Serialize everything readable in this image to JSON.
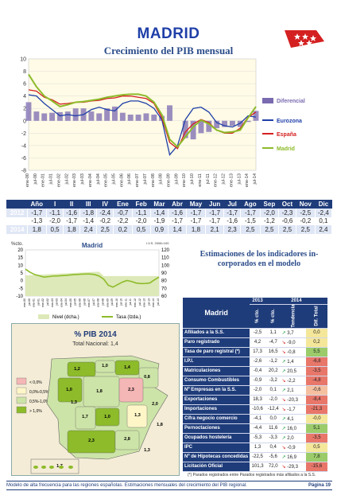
{
  "header": {
    "title": "MADRID",
    "subtitle": "Crecimiento del PIB mensual"
  },
  "chart_main": {
    "type": "line",
    "y_ticks": [
      "10",
      "8",
      "6",
      "4",
      "2",
      "0",
      "-2",
      "-4",
      "-6",
      "-8"
    ],
    "x_ticks": [
      "ene-00",
      "jul-00",
      "ene-01",
      "jul-01",
      "ene-02",
      "jul-02",
      "ene-03",
      "jul-03",
      "ene-04",
      "jul-04",
      "ene-05",
      "jul-05",
      "ene-06",
      "jul-06",
      "ene-07",
      "jul-07",
      "ene-08",
      "jul-08",
      "ene-09",
      "jul-09",
      "ene-10",
      "jul-10",
      "ene-11",
      "jul-11",
      "ene-12",
      "jul-12",
      "ene-13",
      "jul-13",
      "ene-14",
      "jul-14"
    ],
    "legend": [
      {
        "name": "Diferencial",
        "color": "#7a6ab0"
      },
      {
        "name": "Eurozona",
        "color": "#1f3fa8"
      },
      {
        "name": "España",
        "color": "#d42020"
      },
      {
        "name": "Madrid",
        "color": "#8dbb2a"
      }
    ]
  },
  "chart_data": {
    "type": "line",
    "x": [
      "2000-01",
      "2000-07",
      "2001-01",
      "2001-07",
      "2002-01",
      "2002-07",
      "2003-01",
      "2003-07",
      "2004-01",
      "2004-07",
      "2005-01",
      "2005-07",
      "2006-01",
      "2006-07",
      "2007-01",
      "2007-07",
      "2008-01",
      "2008-07",
      "2009-01",
      "2009-07",
      "2010-01",
      "2010-07",
      "2011-01",
      "2011-07",
      "2012-01",
      "2012-07",
      "2013-01",
      "2013-07",
      "2014-01",
      "2014-07"
    ],
    "ylim": [
      -8,
      10
    ],
    "series": [
      {
        "name": "Madrid",
        "values": [
          7.5,
          5.5,
          4.0,
          3.2,
          2.3,
          2.6,
          3.0,
          3.1,
          3.3,
          3.5,
          3.8,
          4.0,
          4.2,
          4.3,
          4.3,
          4.0,
          3.0,
          1.0,
          -3.0,
          -4.2,
          -2.6,
          -1.0,
          0.1,
          -0.5,
          -1.5,
          -1.9,
          -1.8,
          -1.5,
          0.5,
          2.3
        ]
      },
      {
        "name": "España",
        "values": [
          5.0,
          4.8,
          3.8,
          3.4,
          2.7,
          2.8,
          3.0,
          3.0,
          3.2,
          3.3,
          3.6,
          3.7,
          4.0,
          4.0,
          3.8,
          3.6,
          2.8,
          0.5,
          -3.5,
          -4.5,
          -1.8,
          -0.5,
          0.2,
          -0.3,
          -1.5,
          -2.0,
          -2.0,
          -1.2,
          0.6,
          1.4
        ]
      },
      {
        "name": "Eurozona",
        "values": [
          4.2,
          4.0,
          2.8,
          1.8,
          0.8,
          1.0,
          0.8,
          1.0,
          1.8,
          2.2,
          1.8,
          1.6,
          2.8,
          3.2,
          3.2,
          2.8,
          2.0,
          0.2,
          -5.5,
          -4.0,
          0.2,
          2.0,
          2.2,
          1.4,
          -0.3,
          -0.8,
          -1.0,
          -0.4,
          0.8,
          0.6
        ]
      },
      {
        "name": "Diferencial",
        "values": [
          3.0,
          1.5,
          1.2,
          1.3,
          1.4,
          1.5,
          2.0,
          2.0,
          1.5,
          1.2,
          2.0,
          2.3,
          1.3,
          1.0,
          1.0,
          1.2,
          1.0,
          0.8,
          2.5,
          0.0,
          -2.8,
          -3.0,
          -2.0,
          -1.8,
          -1.2,
          -1.0,
          -0.8,
          -1.0,
          -0.2,
          1.6
        ]
      }
    ]
  },
  "table1": {
    "headers": [
      "",
      "Año",
      "I",
      "II",
      "III",
      "IV",
      "Ene",
      "Feb",
      "Mar",
      "Abr",
      "May",
      "Jun",
      "Jul",
      "Ago",
      "Sep",
      "Oct",
      "Nov",
      "Dic"
    ],
    "rows": [
      {
        "year": "2012",
        "vals": [
          "-1,7",
          "-1,1",
          "-1,6",
          "-1,8",
          "-2,4",
          "-0,7",
          "-1,1",
          "-1,4",
          "-1,6",
          "-1,7",
          "-1,7",
          "-1,7",
          "-1,7",
          "-2,0",
          "-2,3",
          "-2,5",
          "-2,4"
        ]
      },
      {
        "year": "2013",
        "vals": [
          "-1,3",
          "-2,0",
          "-1,7",
          "-1,4",
          "-0,2",
          "-2,2",
          "-2,0",
          "-1,9",
          "-1,7",
          "-1,7",
          "-1,7",
          "-1,6",
          "-1,5",
          "-1,2",
          "-0,6",
          "-0,2",
          "0,1"
        ]
      },
      {
        "year": "2014",
        "vals": [
          "1,8",
          "0,5",
          "1,8",
          "2,4",
          "2,5",
          "0,2",
          "0,5",
          "0,9",
          "1,4",
          "1,8",
          "2,1",
          "2,3",
          "2,5",
          "2,5",
          "2,5",
          "2,5",
          "2,4"
        ]
      }
    ]
  },
  "chart_small": {
    "title": "Madrid",
    "ylabel_left": "%cto.",
    "ylabel_right": "I.V.S. 2008=100",
    "left_ticks": [
      "20",
      "15",
      "10",
      "5",
      "0",
      "-5",
      "-10"
    ],
    "right_ticks": [
      "120",
      "110",
      "100",
      "90",
      "80",
      "70",
      "60"
    ],
    "legend": [
      "Nivel (dcha.)",
      "Tasa (Izda.)"
    ]
  },
  "estimaciones": {
    "line1": "Estimaciones de los indicadores in-",
    "line2": "corporados en el modelo"
  },
  "table2": {
    "region": "Madrid",
    "year_a": "2013",
    "year_b": "2014",
    "col_a": "% cto.",
    "col_b": "% cto.",
    "col_c": "Tendencia",
    "col_d": "Dif. Total",
    "rows": [
      {
        "label": "Afiliados a la S.S.",
        "a": "-2,5",
        "b": "1,1",
        "trend": "3,7",
        "dir": "up",
        "diff": "0,0"
      },
      {
        "label": "Paro registrado",
        "a": "4,2",
        "b": "-4,7",
        "trend": "-9,0",
        "dir": "dn",
        "diff": "0,2"
      },
      {
        "label": "Tasa de paro registral (*)",
        "a": "17,3",
        "b": "16,5",
        "trend": "-0,8",
        "dir": "dn",
        "diff": "5,5"
      },
      {
        "label": "I.P.I.",
        "a": "-2,6",
        "b": "-1,2",
        "trend": "1,4",
        "dir": "up",
        "diff": "-6,8"
      },
      {
        "label": "Matriculaciones",
        "a": "-0,4",
        "b": "20,2",
        "trend": "20,5",
        "dir": "up",
        "diff": "-3,5"
      },
      {
        "label": "Consumo Combustibles",
        "a": "-0,9",
        "b": "-3,2",
        "trend": "-2,2",
        "dir": "dn",
        "diff": "-4,8"
      },
      {
        "label": "Nº Empresas en la S.S.",
        "a": "-2,0",
        "b": "0,1",
        "trend": "2,1",
        "dir": "up",
        "diff": "-0,6"
      },
      {
        "label": "Exportaciones",
        "a": "18,3",
        "b": "-2,0",
        "trend": "-20,3",
        "dir": "dn",
        "diff": "-8,4"
      },
      {
        "label": "Importaciones",
        "a": "-10,6",
        "b": "-12,4",
        "trend": "-1,7",
        "dir": "dn",
        "diff": "-21,3"
      },
      {
        "label": "Cifra negocio comercio",
        "a": "-4,1",
        "b": "0,0",
        "trend": "4,1",
        "dir": "up",
        "diff": "-0,0"
      },
      {
        "label": "Pernoctaciones",
        "a": "-4,4",
        "b": "11,6",
        "trend": "16,0",
        "dir": "up",
        "diff": "5,1"
      },
      {
        "label": "Ocupados hostelería",
        "a": "-5,3",
        "b": "-3,3",
        "trend": "2,0",
        "dir": "up",
        "diff": "-3,5"
      },
      {
        "label": "IPC",
        "a": "1,3",
        "b": "0,4",
        "trend": "-0,9",
        "dir": "dn",
        "diff": "0,5"
      },
      {
        "label": "Nº de Hipotecas concedidas",
        "a": "-22,5",
        "b": "-5,6",
        "trend": "16,9",
        "dir": "up",
        "diff": "7,8"
      },
      {
        "label": "Licitación Oficial",
        "a": "101,3",
        "b": "72,0",
        "trend": "-29,3",
        "dir": "dn",
        "diff": "-15,6"
      }
    ],
    "note": "(*) Parados registrados entre Parados registrados más afiliados a la S.S."
  },
  "map": {
    "title": "% PIB 2014",
    "subtitle": "Total Nacional: 1,4",
    "legend": [
      "< 0,0%",
      "0,0%-0,5%",
      "0,5%-1,0%",
      "> 1,0%"
    ],
    "legend_colors": [
      "#f5b6b6",
      "#fff6c8",
      "#cde4a8",
      "#8dbb2a"
    ],
    "labels": [
      "1,2",
      "1,0",
      "1,4",
      "0,8",
      "1,0",
      "1,8",
      "2,3",
      "1,0",
      "1,7",
      "1,3",
      "2,3",
      "2,8",
      "2,0",
      "1,7",
      "1,3",
      "1,8",
      "1,3"
    ]
  },
  "footer": {
    "text": "Modelo de alta frecuencia para las regiones españolas. Estimaciones mensuales del crecimiento del PIB regional.",
    "page": "Página 19"
  }
}
